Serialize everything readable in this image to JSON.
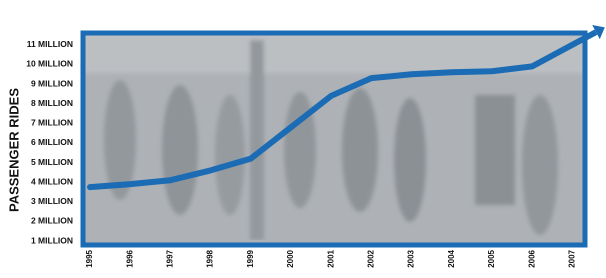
{
  "chart_data": {
    "type": "line",
    "ylabel": "PASSENGER RIDES",
    "categories": [
      "1995",
      "1996",
      "1997",
      "1998",
      "1999",
      "2000",
      "2001",
      "2002",
      "2003",
      "2004",
      "2005",
      "2006",
      "2007"
    ],
    "series": [
      {
        "color": "#1b6cb4",
        "values": [
          3.75,
          3.9,
          4.1,
          4.6,
          5.2,
          6.8,
          8.4,
          9.3,
          9.5,
          9.6,
          9.65,
          9.9,
          11.0
        ]
      }
    ],
    "ylim": [
      0.8,
      11.6
    ],
    "yticks": [
      {
        "value": 1,
        "label": "1 MILLION"
      },
      {
        "value": 2,
        "label": "2 MILLION"
      },
      {
        "value": 3,
        "label": "3 MILLION"
      },
      {
        "value": 4,
        "label": "4 MILLION"
      },
      {
        "value": 5,
        "label": "5 MILLION"
      },
      {
        "value": 6,
        "label": "6 MILLION"
      },
      {
        "value": 7,
        "label": "7 MILLION"
      },
      {
        "value": 8,
        "label": "8 MILLION"
      },
      {
        "value": 9,
        "label": "9 MILLION"
      },
      {
        "value": 10,
        "label": "10 MILLION"
      },
      {
        "value": 11,
        "label": "11 MILLION"
      }
    ]
  }
}
